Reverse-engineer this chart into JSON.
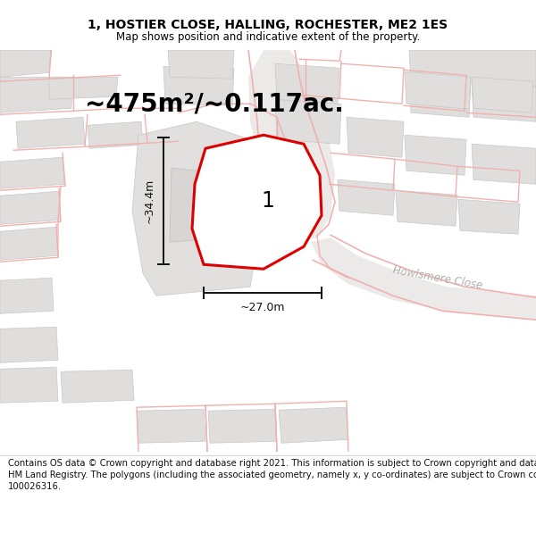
{
  "title": "1, HOSTIER CLOSE, HALLING, ROCHESTER, ME2 1ES",
  "subtitle": "Map shows position and indicative extent of the property.",
  "footer_lines": [
    "Contains OS data © Crown copyright and database right 2021. This information is subject to Crown copyright and database rights 2023 and is reproduced with the permission of",
    "HM Land Registry. The polygons (including the associated geometry, namely x, y co-ordinates) are subject to Crown copyright and database rights 2023 Ordnance Survey",
    "100026316."
  ],
  "area_text": "~475m²/~0.117ac.",
  "width_text": "~27.0m",
  "height_text": "~34.4m",
  "plot_number": "1",
  "map_bg": "#f9f8f6",
  "building_fill": "#e0dedc",
  "building_edge": "#c8c8c8",
  "plot_line_color": "#f0b0b0",
  "plot_outline_color": "#dd0000",
  "road_fill": "#ececec",
  "dim_color": "#111111",
  "title_fontsize": 10,
  "subtitle_fontsize": 8.5,
  "footer_fontsize": 7.2,
  "area_fontsize": 20,
  "dim_fontsize": 9,
  "plot_label_fontsize": 17,
  "street_label_fontsize": 8.5,
  "figsize": [
    6.0,
    6.25
  ]
}
